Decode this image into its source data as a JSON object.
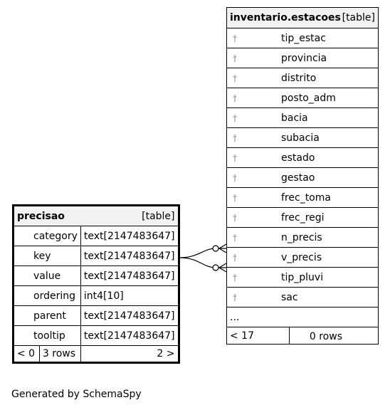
{
  "left_table": {
    "name": "precisao",
    "type": "[table]",
    "columns": [
      {
        "name": "category",
        "type": "text[2147483647]"
      },
      {
        "name": "key",
        "type": "text[2147483647]"
      },
      {
        "name": "value",
        "type": "text[2147483647]"
      },
      {
        "name": "ordering",
        "type": "int4[10]"
      },
      {
        "name": "parent",
        "type": "text[2147483647]"
      },
      {
        "name": "tooltip",
        "type": "text[2147483647]"
      }
    ],
    "footer": {
      "parents": "< 0",
      "rows": "3 rows",
      "children": "2 >"
    }
  },
  "right_table": {
    "name": "inventario.estacoes",
    "type": "[table]",
    "columns": [
      {
        "name": "tip_estac"
      },
      {
        "name": "provincia"
      },
      {
        "name": "distrito"
      },
      {
        "name": "posto_adm"
      },
      {
        "name": "bacia"
      },
      {
        "name": "subacia"
      },
      {
        "name": "estado"
      },
      {
        "name": "gestao"
      },
      {
        "name": "frec_toma"
      },
      {
        "name": "frec_regi"
      },
      {
        "name": "n_precis"
      },
      {
        "name": "v_precis"
      },
      {
        "name": "tip_pluvi"
      },
      {
        "name": "sac"
      }
    ],
    "more": "...",
    "footer": {
      "parents": "< 17",
      "rows": "0 rows"
    }
  },
  "icons": {
    "column_icon": "key-icon"
  },
  "footer_text": "Generated by SchemaSpy"
}
